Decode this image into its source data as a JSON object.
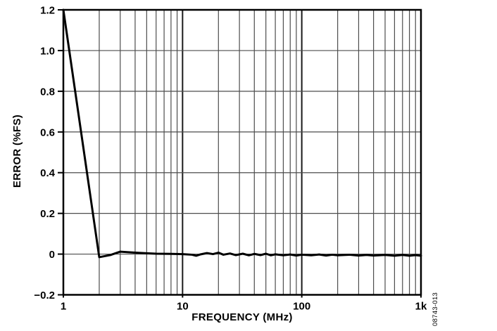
{
  "chart_data": {
    "type": "line",
    "title": "",
    "xlabel": "FREQUENCY (MHz)",
    "ylabel": "ERROR (%FS)",
    "x_scale": "log",
    "xlim": [
      1,
      1000
    ],
    "ylim": [
      -0.2,
      1.2
    ],
    "grid": "on",
    "legend": "none",
    "x_ticks": [
      {
        "value": 1,
        "label": "1"
      },
      {
        "value": 10,
        "label": "10"
      },
      {
        "value": 100,
        "label": "100"
      },
      {
        "value": 1000,
        "label": "1k"
      }
    ],
    "y_ticks": [
      {
        "value": -0.2,
        "label": "−0.2"
      },
      {
        "value": 0,
        "label": "0"
      },
      {
        "value": 0.2,
        "label": "0.2"
      },
      {
        "value": 0.4,
        "label": "0.4"
      },
      {
        "value": 0.6,
        "label": "0.6"
      },
      {
        "value": 0.8,
        "label": "0.8"
      },
      {
        "value": 1.0,
        "label": "1.0"
      },
      {
        "value": 1.2,
        "label": "1.2"
      }
    ],
    "series": [
      {
        "name": "error",
        "color": "#000000",
        "points": [
          [
            1,
            1.2
          ],
          [
            2,
            -0.015
          ],
          [
            2.5,
            -0.004
          ],
          [
            3,
            0.012
          ],
          [
            4,
            0.007
          ],
          [
            5,
            0.004
          ],
          [
            6,
            0.002
          ],
          [
            8,
            0.001
          ],
          [
            10,
            0.0
          ],
          [
            12,
            -0.003
          ],
          [
            13,
            -0.008
          ],
          [
            14,
            -0.002
          ],
          [
            16,
            0.005
          ],
          [
            18,
            0.0
          ],
          [
            20,
            0.007
          ],
          [
            22,
            -0.003
          ],
          [
            25,
            0.003
          ],
          [
            28,
            -0.005
          ],
          [
            32,
            0.002
          ],
          [
            36,
            -0.006
          ],
          [
            40,
            0.001
          ],
          [
            45,
            -0.005
          ],
          [
            50,
            0.002
          ],
          [
            55,
            -0.006
          ],
          [
            60,
            -0.001
          ],
          [
            70,
            -0.006
          ],
          [
            80,
            -0.002
          ],
          [
            90,
            -0.007
          ],
          [
            100,
            -0.003
          ],
          [
            120,
            -0.006
          ],
          [
            140,
            -0.002
          ],
          [
            160,
            -0.007
          ],
          [
            180,
            -0.003
          ],
          [
            200,
            -0.006
          ],
          [
            250,
            -0.003
          ],
          [
            300,
            -0.007
          ],
          [
            350,
            -0.004
          ],
          [
            400,
            -0.007
          ],
          [
            500,
            -0.004
          ],
          [
            600,
            -0.008
          ],
          [
            700,
            -0.004
          ],
          [
            800,
            -0.008
          ],
          [
            900,
            -0.005
          ],
          [
            1000,
            -0.008
          ]
        ]
      }
    ],
    "colors": {
      "background": "#ffffff",
      "frame": "#000000",
      "grid_minor": "#4d4d4d",
      "grid_major": "#1a1a1a",
      "line": "#000000",
      "text": "#000000"
    },
    "watermark": "08743-013"
  }
}
